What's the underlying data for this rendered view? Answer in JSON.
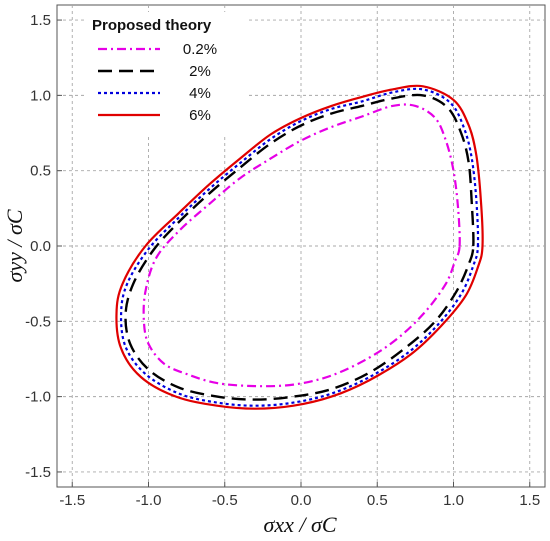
{
  "chart_data": {
    "type": "line",
    "title": "",
    "xlabel": "σxx / σC",
    "ylabel": "σyy / σC",
    "xlim": [
      -1.6,
      1.6
    ],
    "ylim": [
      -1.6,
      1.6
    ],
    "xticks": [
      "-1.5",
      "-1.0",
      "-0.5",
      "0.0",
      "0.5",
      "1.0",
      "1.5"
    ],
    "yticks": [
      "-1.5",
      "-1.0",
      "-0.5",
      "0.0",
      "0.5",
      "1.0",
      "1.5"
    ],
    "xtick_values": [
      -1.5,
      -1.0,
      -0.5,
      0.0,
      0.5,
      1.0,
      1.5
    ],
    "ytick_values": [
      -1.5,
      -1.0,
      -0.5,
      0.0,
      0.5,
      1.0,
      1.5
    ],
    "grid": true,
    "legend_title": "Proposed theory",
    "legend_position": "top-left",
    "series": [
      {
        "name": "0.2%",
        "color": "#e600e6",
        "style": "dash-dot",
        "points": [
          [
            1.04,
            0.0
          ],
          [
            1.03,
            0.25
          ],
          [
            1.0,
            0.5
          ],
          [
            0.95,
            0.7
          ],
          [
            0.88,
            0.85
          ],
          [
            0.75,
            0.93
          ],
          [
            0.6,
            0.93
          ],
          [
            0.4,
            0.86
          ],
          [
            0.2,
            0.79
          ],
          [
            0.0,
            0.7
          ],
          [
            -0.2,
            0.58
          ],
          [
            -0.4,
            0.45
          ],
          [
            -0.6,
            0.28
          ],
          [
            -0.8,
            0.1
          ],
          [
            -0.95,
            -0.08
          ],
          [
            -1.02,
            -0.3
          ],
          [
            -1.03,
            -0.5
          ],
          [
            -1.0,
            -0.65
          ],
          [
            -0.9,
            -0.78
          ],
          [
            -0.75,
            -0.85
          ],
          [
            -0.55,
            -0.91
          ],
          [
            -0.3,
            -0.93
          ],
          [
            -0.05,
            -0.92
          ],
          [
            0.2,
            -0.86
          ],
          [
            0.45,
            -0.74
          ],
          [
            0.65,
            -0.6
          ],
          [
            0.82,
            -0.43
          ],
          [
            0.95,
            -0.25
          ],
          [
            1.01,
            -0.1
          ],
          [
            1.04,
            0.0
          ]
        ]
      },
      {
        "name": "2%",
        "color": "#000000",
        "style": "dash",
        "points": [
          [
            1.13,
            0.0
          ],
          [
            1.12,
            0.28
          ],
          [
            1.1,
            0.55
          ],
          [
            1.05,
            0.75
          ],
          [
            0.96,
            0.92
          ],
          [
            0.8,
            1.0
          ],
          [
            0.6,
            0.98
          ],
          [
            0.4,
            0.93
          ],
          [
            0.2,
            0.88
          ],
          [
            0.0,
            0.8
          ],
          [
            -0.2,
            0.68
          ],
          [
            -0.4,
            0.52
          ],
          [
            -0.6,
            0.35
          ],
          [
            -0.8,
            0.16
          ],
          [
            -0.97,
            -0.03
          ],
          [
            -1.1,
            -0.25
          ],
          [
            -1.15,
            -0.45
          ],
          [
            -1.12,
            -0.65
          ],
          [
            -1.0,
            -0.82
          ],
          [
            -0.8,
            -0.94
          ],
          [
            -0.55,
            -1.0
          ],
          [
            -0.3,
            -1.02
          ],
          [
            -0.05,
            -1.0
          ],
          [
            0.2,
            -0.95
          ],
          [
            0.45,
            -0.84
          ],
          [
            0.68,
            -0.68
          ],
          [
            0.88,
            -0.5
          ],
          [
            1.02,
            -0.3
          ],
          [
            1.1,
            -0.12
          ],
          [
            1.13,
            0.0
          ]
        ]
      },
      {
        "name": "4%",
        "color": "#0000dd",
        "style": "dot",
        "points": [
          [
            1.16,
            0.0
          ],
          [
            1.15,
            0.3
          ],
          [
            1.12,
            0.58
          ],
          [
            1.07,
            0.78
          ],
          [
            0.98,
            0.95
          ],
          [
            0.8,
            1.04
          ],
          [
            0.6,
            1.02
          ],
          [
            0.4,
            0.96
          ],
          [
            0.2,
            0.91
          ],
          [
            0.0,
            0.83
          ],
          [
            -0.2,
            0.71
          ],
          [
            -0.4,
            0.55
          ],
          [
            -0.6,
            0.38
          ],
          [
            -0.8,
            0.19
          ],
          [
            -1.0,
            -0.02
          ],
          [
            -1.14,
            -0.25
          ],
          [
            -1.18,
            -0.45
          ],
          [
            -1.15,
            -0.67
          ],
          [
            -1.02,
            -0.85
          ],
          [
            -0.8,
            -0.98
          ],
          [
            -0.55,
            -1.04
          ],
          [
            -0.3,
            -1.06
          ],
          [
            -0.05,
            -1.04
          ],
          [
            0.2,
            -0.98
          ],
          [
            0.45,
            -0.87
          ],
          [
            0.7,
            -0.71
          ],
          [
            0.9,
            -0.52
          ],
          [
            1.05,
            -0.32
          ],
          [
            1.13,
            -0.13
          ],
          [
            1.16,
            0.0
          ]
        ]
      },
      {
        "name": "6%",
        "color": "#e00000",
        "style": "solid",
        "points": [
          [
            1.19,
            0.0
          ],
          [
            1.18,
            0.3
          ],
          [
            1.15,
            0.6
          ],
          [
            1.1,
            0.8
          ],
          [
            1.0,
            0.97
          ],
          [
            0.8,
            1.06
          ],
          [
            0.6,
            1.04
          ],
          [
            0.4,
            0.99
          ],
          [
            0.2,
            0.93
          ],
          [
            0.0,
            0.85
          ],
          [
            -0.2,
            0.74
          ],
          [
            -0.4,
            0.58
          ],
          [
            -0.6,
            0.41
          ],
          [
            -0.8,
            0.22
          ],
          [
            -1.02,
            0.0
          ],
          [
            -1.17,
            -0.25
          ],
          [
            -1.21,
            -0.45
          ],
          [
            -1.18,
            -0.68
          ],
          [
            -1.05,
            -0.87
          ],
          [
            -0.82,
            -1.0
          ],
          [
            -0.55,
            -1.06
          ],
          [
            -0.3,
            -1.08
          ],
          [
            -0.05,
            -1.06
          ],
          [
            0.2,
            -1.0
          ],
          [
            0.45,
            -0.89
          ],
          [
            0.72,
            -0.72
          ],
          [
            0.92,
            -0.53
          ],
          [
            1.08,
            -0.33
          ],
          [
            1.16,
            -0.14
          ],
          [
            1.19,
            0.0
          ]
        ]
      }
    ]
  }
}
